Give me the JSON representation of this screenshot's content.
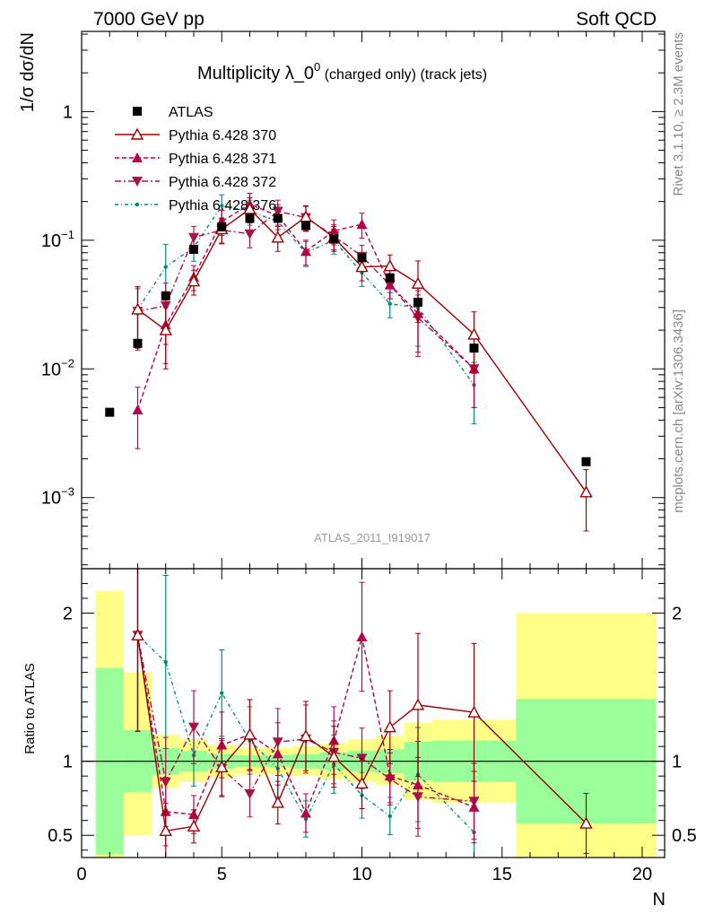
{
  "header": {
    "left": "7000 GeV pp",
    "right": "Soft QCD"
  },
  "side_labels": {
    "rivet": "Rivet 3.1.10, ≥ 2.3M events",
    "mcplots": "mcplots.cern.ch [arXiv:1306.3436]"
  },
  "watermark": "ATLAS_2011_I919017",
  "colors": {
    "atlas": "#000000",
    "p370": "#990000",
    "p371": "#b3004d",
    "p372": "#a31647",
    "p376": "#008877",
    "band_green": "#99ff99",
    "band_yellow": "#ffff88"
  },
  "chart_data": [
    {
      "type": "scatter",
      "name": "main-panel",
      "title": "Multiplicity λ_0⁰ (charged only) (track jets)",
      "title_main": "Multiplicity λ_0",
      "title_sup": "0",
      "title_tail": " (charged only) (track jets)",
      "ylabel": "1/σ dσ/dN",
      "yscale": "log",
      "xlim": [
        0,
        20.8
      ],
      "ylim": [
        0.00028,
        4.2
      ],
      "y_ticks": [
        {
          "value": 0.001,
          "base": "10",
          "exp": "−3"
        },
        {
          "value": 0.01,
          "base": "10",
          "exp": "−2"
        },
        {
          "value": 0.1,
          "base": "10",
          "exp": "−1"
        },
        {
          "value": 1,
          "base": "1",
          "exp": ""
        }
      ],
      "legend_position": "top-left",
      "series": [
        {
          "name": "ATLAS",
          "key": "atlas",
          "x": [
            1,
            2,
            3,
            4,
            5,
            6,
            7,
            8,
            9,
            10,
            11,
            12,
            14,
            18
          ],
          "y": [
            0.0046,
            0.0158,
            0.037,
            0.085,
            0.127,
            0.148,
            0.148,
            0.13,
            0.102,
            0.073,
            0.051,
            0.033,
            0.0145,
            0.0019
          ]
        },
        {
          "name": "Pythia 6.428 370",
          "key": "p370",
          "x": [
            2,
            3,
            4,
            5,
            6,
            7,
            8,
            9,
            10,
            11,
            12,
            14,
            18
          ],
          "y": [
            0.029,
            0.02,
            0.048,
            0.122,
            0.175,
            0.105,
            0.152,
            0.105,
            0.062,
            0.063,
            0.046,
            0.0185,
            0.0011
          ]
        },
        {
          "name": "Pythia 6.428 371",
          "key": "p371",
          "x": [
            2,
            3,
            4,
            5,
            6,
            7,
            8,
            9,
            10,
            11,
            12,
            14
          ],
          "y": [
            0.0048,
            0.022,
            0.052,
            0.14,
            0.19,
            0.155,
            0.082,
            0.118,
            0.133,
            0.045,
            0.027,
            0.01
          ]
        },
        {
          "name": "Pythia 6.428 372",
          "key": "p372",
          "x": [
            2,
            3,
            4,
            5,
            6,
            7,
            8,
            9,
            10,
            11,
            12,
            14
          ],
          "y": [
            0.028,
            0.031,
            0.105,
            0.12,
            0.112,
            0.168,
            0.15,
            0.108,
            0.075,
            0.045,
            0.025,
            0.01
          ]
        },
        {
          "name": "Pythia 6.428 376",
          "key": "p376",
          "x": [
            2,
            3,
            4,
            5,
            6,
            7,
            8,
            9,
            10,
            11,
            12,
            14
          ],
          "y": [
            0.029,
            0.062,
            0.088,
            0.185,
            0.168,
            0.14,
            0.08,
            0.1,
            0.056,
            0.032,
            0.03,
            0.0075
          ]
        }
      ]
    },
    {
      "type": "scatter",
      "name": "ratio-panel",
      "xlabel": "N",
      "ylabel": "Ratio to ATLAS",
      "xlim": [
        0,
        20.8
      ],
      "ylim": [
        0.35,
        2.3
      ],
      "x_ticks": [
        0,
        5,
        10,
        15,
        20
      ],
      "y_ticks": [
        0.5,
        1,
        2
      ],
      "bands": {
        "edges": [
          0.5,
          1.5,
          2.5,
          3.5,
          4.5,
          5.5,
          6.5,
          7.5,
          8.5,
          9.5,
          10.5,
          11.5,
          12.5,
          15.5,
          20.5
        ],
        "green_lo": [
          0.37,
          0.79,
          0.91,
          0.93,
          0.95,
          0.96,
          0.96,
          0.95,
          0.94,
          0.93,
          0.92,
          0.87,
          0.86,
          0.58
        ],
        "green_hi": [
          1.63,
          1.21,
          1.09,
          1.07,
          1.05,
          1.04,
          1.04,
          1.05,
          1.06,
          1.07,
          1.08,
          1.13,
          1.14,
          1.42
        ],
        "yellow_lo": [
          0.33,
          0.5,
          0.82,
          0.86,
          0.89,
          0.91,
          0.91,
          0.9,
          0.88,
          0.86,
          0.84,
          0.74,
          0.72,
          0.3
        ],
        "yellow_hi": [
          2.15,
          1.6,
          1.18,
          1.15,
          1.11,
          1.09,
          1.09,
          1.1,
          1.12,
          1.15,
          1.17,
          1.26,
          1.28,
          2.0
        ]
      },
      "series": [
        {
          "name": "Pythia 6.428 370",
          "key": "p370",
          "x": [
            2,
            3,
            4,
            5,
            6,
            7,
            8,
            9,
            10,
            11,
            12,
            14,
            18
          ],
          "y": [
            1.85,
            0.53,
            0.56,
            0.96,
            1.18,
            0.72,
            1.17,
            1.03,
            0.85,
            1.23,
            1.38,
            1.33,
            0.58
          ]
        },
        {
          "name": "Pythia 6.428 371",
          "key": "p371",
          "x": [
            2,
            3,
            4,
            5,
            6,
            7,
            8,
            9,
            10,
            11,
            12,
            14
          ],
          "y": [
            1.85,
            0.66,
            0.64,
            1.11,
            1.18,
            1.05,
            0.65,
            1.14,
            1.84,
            0.9,
            0.84,
            0.69
          ]
        },
        {
          "name": "Pythia 6.428 372",
          "key": "p372",
          "x": [
            2,
            3,
            4,
            5,
            6,
            7,
            8,
            9,
            10,
            11,
            12,
            14
          ],
          "y": [
            1.85,
            0.86,
            1.23,
            0.95,
            0.78,
            1.13,
            1.15,
            1.06,
            1.02,
            0.88,
            0.76,
            0.73
          ]
        },
        {
          "name": "Pythia 6.428 376",
          "key": "p376",
          "x": [
            2,
            3,
            4,
            5,
            6,
            7,
            8,
            9,
            10,
            11,
            12,
            14
          ],
          "y": [
            1.85,
            1.67,
            1.04,
            1.46,
            1.14,
            0.95,
            0.61,
            0.98,
            0.77,
            0.63,
            0.91,
            0.52
          ]
        }
      ]
    }
  ]
}
